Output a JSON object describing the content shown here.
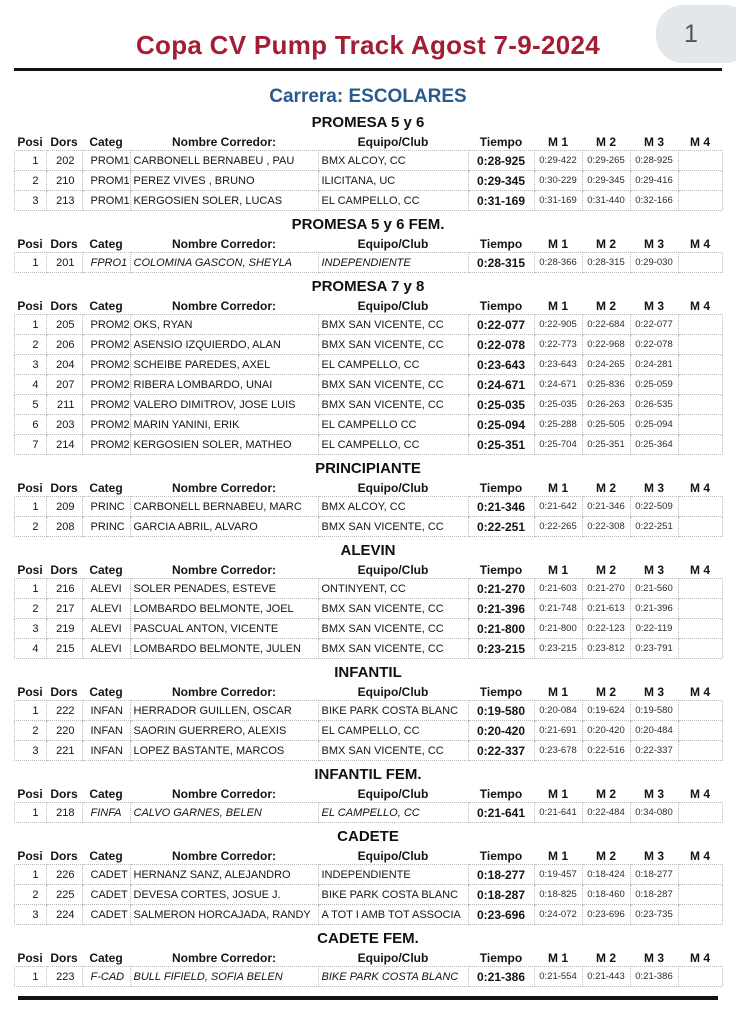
{
  "page": {
    "number": "1"
  },
  "header": {
    "title": "Copa CV Pump Track Agost 7-9-2024",
    "race_label": "Carrera: ESCOLARES"
  },
  "colors": {
    "title": "#a21e35",
    "race": "#2a5a8c",
    "badge_bg": "#e3e7e9",
    "rule": "#141414"
  },
  "table": {
    "columns": [
      "Posi",
      "Dors",
      "Categ",
      "Nombre Corredor:",
      "Equipo/Club",
      "Tiempo",
      "M 1",
      "M 2",
      "M 3",
      "M 4"
    ]
  },
  "sections": [
    {
      "title": "PROMESA 5 y 6",
      "rows": [
        {
          "posi": "1",
          "dors": "202",
          "categ": "PROM1",
          "nombre": "CARBONELL BERNABEU , PAU",
          "equipo": "BMX ALCOY, CC",
          "tiempo": "0:28-925",
          "m1": "0:29-422",
          "m2": "0:29-265",
          "m3": "0:28-925",
          "m4": "",
          "fem": false
        },
        {
          "posi": "2",
          "dors": "210",
          "categ": "PROM1",
          "nombre": "PEREZ VIVES , BRUNO",
          "equipo": "ILICITANA, UC",
          "tiempo": "0:29-345",
          "m1": "0:30-229",
          "m2": "0:29-345",
          "m3": "0:29-416",
          "m4": "",
          "fem": false
        },
        {
          "posi": "3",
          "dors": "213",
          "categ": "PROM1",
          "nombre": "KERGOSIEN SOLER, LUCAS",
          "equipo": "EL CAMPELLO, CC",
          "tiempo": "0:31-169",
          "m1": "0:31-169",
          "m2": "0:31-440",
          "m3": "0:32-166",
          "m4": "",
          "fem": false
        }
      ]
    },
    {
      "title": "PROMESA 5 y 6 FEM.",
      "rows": [
        {
          "posi": "1",
          "dors": "201",
          "categ": "FPRO1",
          "nombre": "COLOMINA GASCON, SHEYLA",
          "equipo": "INDEPENDIENTE",
          "tiempo": "0:28-315",
          "m1": "0:28-366",
          "m2": "0:28-315",
          "m3": "0:29-030",
          "m4": "",
          "fem": true
        }
      ]
    },
    {
      "title": "PROMESA 7 y 8",
      "rows": [
        {
          "posi": "1",
          "dors": "205",
          "categ": "PROM2",
          "nombre": "OKS, RYAN",
          "equipo": "BMX SAN VICENTE, CC",
          "tiempo": "0:22-077",
          "m1": "0:22-905",
          "m2": "0:22-684",
          "m3": "0:22-077",
          "m4": "",
          "fem": false
        },
        {
          "posi": "2",
          "dors": "206",
          "categ": "PROM2",
          "nombre": "ASENSIO IZQUIERDO, ALAN",
          "equipo": "BMX SAN VICENTE, CC",
          "tiempo": "0:22-078",
          "m1": "0:22-773",
          "m2": "0:22-968",
          "m3": "0:22-078",
          "m4": "",
          "fem": false
        },
        {
          "posi": "3",
          "dors": "204",
          "categ": "PROM2",
          "nombre": "SCHEIBE PAREDES, AXEL",
          "equipo": "EL CAMPELLO, CC",
          "tiempo": "0:23-643",
          "m1": "0:23-643",
          "m2": "0:24-265",
          "m3": "0:24-281",
          "m4": "",
          "fem": false
        },
        {
          "posi": "4",
          "dors": "207",
          "categ": "PROM2",
          "nombre": "RIBERA LOMBARDO, UNAI",
          "equipo": "BMX SAN VICENTE, CC",
          "tiempo": "0:24-671",
          "m1": "0:24-671",
          "m2": "0:25-836",
          "m3": "0:25-059",
          "m4": "",
          "fem": false
        },
        {
          "posi": "5",
          "dors": "211",
          "categ": "PROM2",
          "nombre": "VALERO DIMITROV, JOSE LUIS",
          "equipo": "BMX SAN VICENTE, CC",
          "tiempo": "0:25-035",
          "m1": "0:25-035",
          "m2": "0:26-263",
          "m3": "0:26-535",
          "m4": "",
          "fem": false
        },
        {
          "posi": "6",
          "dors": "203",
          "categ": "PROM2",
          "nombre": "MARIN YANINI, ERIK",
          "equipo": "EL CAMPELLO CC",
          "tiempo": "0:25-094",
          "m1": "0:25-288",
          "m2": "0:25-505",
          "m3": "0:25-094",
          "m4": "",
          "fem": false
        },
        {
          "posi": "7",
          "dors": "214",
          "categ": "PROM2",
          "nombre": "KERGOSIEN SOLER, MATHEO",
          "equipo": "EL CAMPELLO, CC",
          "tiempo": "0:25-351",
          "m1": "0:25-704",
          "m2": "0:25-351",
          "m3": "0:25-364",
          "m4": "",
          "fem": false
        }
      ]
    },
    {
      "title": "PRINCIPIANTE",
      "rows": [
        {
          "posi": "1",
          "dors": "209",
          "categ": "PRINC",
          "nombre": "CARBONELL BERNABEU, MARC",
          "equipo": "BMX ALCOY, CC",
          "tiempo": "0:21-346",
          "m1": "0:21-642",
          "m2": "0:21-346",
          "m3": "0:22-509",
          "m4": "",
          "fem": false
        },
        {
          "posi": "2",
          "dors": "208",
          "categ": "PRINC",
          "nombre": "GARCIA ABRIL, ALVARO",
          "equipo": "BMX SAN VICENTE, CC",
          "tiempo": "0:22-251",
          "m1": "0:22-265",
          "m2": "0:22-308",
          "m3": "0:22-251",
          "m4": "",
          "fem": false
        }
      ]
    },
    {
      "title": "ALEVIN",
      "rows": [
        {
          "posi": "1",
          "dors": "216",
          "categ": "ALEVI",
          "nombre": "SOLER PENADES, ESTEVE",
          "equipo": "ONTINYENT, CC",
          "tiempo": "0:21-270",
          "m1": "0:21-603",
          "m2": "0:21-270",
          "m3": "0:21-560",
          "m4": "",
          "fem": false
        },
        {
          "posi": "2",
          "dors": "217",
          "categ": "ALEVI",
          "nombre": "LOMBARDO BELMONTE, JOEL",
          "equipo": "BMX SAN VICENTE, CC",
          "tiempo": "0:21-396",
          "m1": "0:21-748",
          "m2": "0:21-613",
          "m3": "0:21-396",
          "m4": "",
          "fem": false
        },
        {
          "posi": "3",
          "dors": "219",
          "categ": "ALEVI",
          "nombre": "PASCUAL ANTON, VICENTE",
          "equipo": "BMX SAN VICENTE, CC",
          "tiempo": "0:21-800",
          "m1": "0:21-800",
          "m2": "0:22-123",
          "m3": "0:22-119",
          "m4": "",
          "fem": false
        },
        {
          "posi": "4",
          "dors": "215",
          "categ": "ALEVI",
          "nombre": "LOMBARDO BELMONTE, JULEN",
          "equipo": "BMX SAN VICENTE, CC",
          "tiempo": "0:23-215",
          "m1": "0:23-215",
          "m2": "0:23-812",
          "m3": "0:23-791",
          "m4": "",
          "fem": false
        }
      ]
    },
    {
      "title": "INFANTIL",
      "rows": [
        {
          "posi": "1",
          "dors": "222",
          "categ": "INFAN",
          "nombre": "HERRADOR GUILLEN, OSCAR",
          "equipo": "BIKE PARK COSTA BLANC",
          "tiempo": "0:19-580",
          "m1": "0:20-084",
          "m2": "0:19-624",
          "m3": "0:19-580",
          "m4": "",
          "fem": false
        },
        {
          "posi": "2",
          "dors": "220",
          "categ": "INFAN",
          "nombre": "SAORIN GUERRERO, ALEXIS",
          "equipo": "EL CAMPELLO, CC",
          "tiempo": "0:20-420",
          "m1": "0:21-691",
          "m2": "0:20-420",
          "m3": "0:20-484",
          "m4": "",
          "fem": false
        },
        {
          "posi": "3",
          "dors": "221",
          "categ": "INFAN",
          "nombre": "LOPEZ BASTANTE, MARCOS",
          "equipo": "BMX SAN VICENTE, CC",
          "tiempo": "0:22-337",
          "m1": "0:23-678",
          "m2": "0:22-516",
          "m3": "0:22-337",
          "m4": "",
          "fem": false
        }
      ]
    },
    {
      "title": "INFANTIL FEM.",
      "rows": [
        {
          "posi": "1",
          "dors": "218",
          "categ": "FINFA",
          "nombre": "CALVO GARNES, BELEN",
          "equipo": "EL CAMPELLO, CC",
          "tiempo": "0:21-641",
          "m1": "0:21-641",
          "m2": "0:22-484",
          "m3": "0:34-080",
          "m4": "",
          "fem": true
        }
      ]
    },
    {
      "title": "CADETE",
      "rows": [
        {
          "posi": "1",
          "dors": "226",
          "categ": "CADET",
          "nombre": "HERNANZ SANZ, ALEJANDRO",
          "equipo": "INDEPENDIENTE",
          "tiempo": "0:18-277",
          "m1": "0:19-457",
          "m2": "0:18-424",
          "m3": "0:18-277",
          "m4": "",
          "fem": false
        },
        {
          "posi": "2",
          "dors": "225",
          "categ": "CADET",
          "nombre": "DEVESA CORTES, JOSUE J.",
          "equipo": "BIKE PARK COSTA BLANC",
          "tiempo": "0:18-287",
          "m1": "0:18-825",
          "m2": "0:18-460",
          "m3": "0:18-287",
          "m4": "",
          "fem": false
        },
        {
          "posi": "3",
          "dors": "224",
          "categ": "CADET",
          "nombre": "SALMERON HORCAJADA, RANDY",
          "equipo": "A TOT I AMB TOT ASSOCIA",
          "tiempo": "0:23-696",
          "m1": "0:24-072",
          "m2": "0:23-696",
          "m3": "0:23-735",
          "m4": "",
          "fem": false
        }
      ]
    },
    {
      "title": "CADETE FEM.",
      "rows": [
        {
          "posi": "1",
          "dors": "223",
          "categ": "F-CAD",
          "nombre": "BULL FIFIELD, SOFIA BELEN",
          "equipo": "BIKE PARK COSTA BLANC",
          "tiempo": "0:21-386",
          "m1": "0:21-554",
          "m2": "0:21-443",
          "m3": "0:21-386",
          "m4": "",
          "fem": true
        }
      ]
    }
  ]
}
